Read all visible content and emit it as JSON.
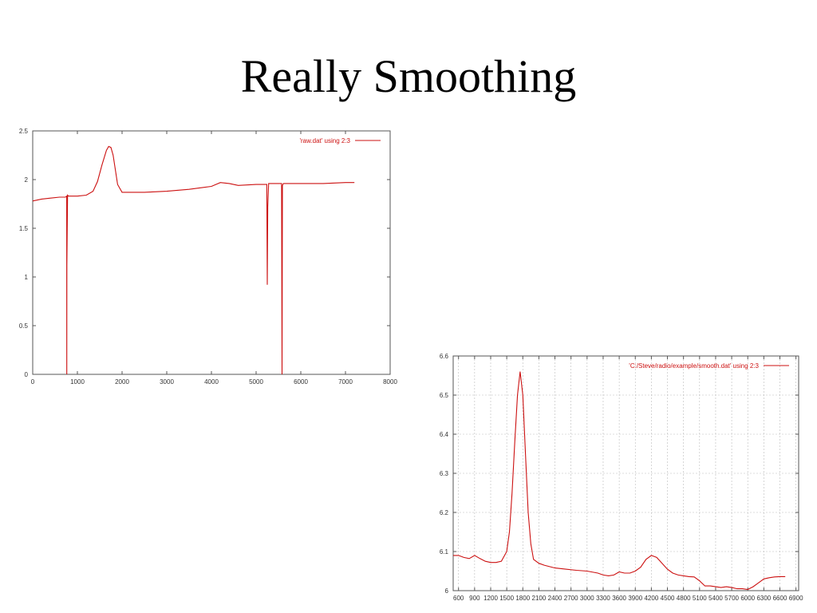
{
  "slide": {
    "title": "Really Smoothing"
  },
  "colors": {
    "line": "#cc1111",
    "axis": "#555555",
    "grid": "#bbbbbb"
  },
  "chart_data": [
    {
      "type": "line",
      "title": "",
      "xlabel": "",
      "ylabel": "",
      "xlim": [
        0,
        8000
      ],
      "ylim": [
        0,
        2.5
      ],
      "grid": false,
      "legend_position": "top-right",
      "x_ticks": [
        0,
        1000,
        2000,
        3000,
        4000,
        5000,
        6000,
        7000,
        8000
      ],
      "y_ticks": [
        0,
        0.5,
        1,
        1.5,
        2,
        2.5
      ],
      "series": [
        {
          "name": "'raw.dat' using 2:3",
          "x": [
            0,
            200,
            400,
            600,
            730,
            760,
            762,
            765,
            780,
            800,
            1000,
            1200,
            1350,
            1450,
            1550,
            1650,
            1700,
            1750,
            1800,
            1850,
            1900,
            2000,
            2100,
            2200,
            2500,
            3000,
            3500,
            4000,
            4200,
            4400,
            4600,
            5000,
            5240,
            5250,
            5260,
            5280,
            5400,
            5500,
            5570,
            5580,
            5590,
            5610,
            5700,
            6000,
            6500,
            7000,
            7200
          ],
          "y": [
            1.78,
            1.8,
            1.81,
            1.82,
            1.82,
            1.83,
            0,
            1.12,
            1.84,
            1.83,
            1.83,
            1.84,
            1.88,
            1.98,
            2.15,
            2.3,
            2.34,
            2.33,
            2.25,
            2.1,
            1.95,
            1.87,
            1.87,
            1.87,
            1.87,
            1.88,
            1.9,
            1.93,
            1.97,
            1.96,
            1.94,
            1.95,
            1.95,
            0.92,
            1.72,
            1.96,
            1.96,
            1.96,
            1.96,
            0,
            1.94,
            1.96,
            1.96,
            1.96,
            1.96,
            1.97,
            1.97
          ]
        }
      ]
    },
    {
      "type": "line",
      "title": "",
      "xlabel": "",
      "ylabel": "",
      "xlim": [
        500,
        6950
      ],
      "ylim": [
        6,
        6.6
      ],
      "grid": true,
      "legend_position": "top-right",
      "x_ticks": [
        600,
        900,
        1200,
        1500,
        1800,
        2100,
        2400,
        2700,
        3000,
        3300,
        3600,
        3900,
        4200,
        4500,
        4800,
        5100,
        5400,
        5700,
        6000,
        6300,
        6600,
        6900
      ],
      "y_ticks": [
        6,
        6.1,
        6.2,
        6.3,
        6.4,
        6.5,
        6.6
      ],
      "series": [
        {
          "name": "'C:/Steve/radio/example/smooth.dat' using 2:3",
          "x": [
            500,
            600,
            700,
            800,
            900,
            1000,
            1100,
            1200,
            1300,
            1400,
            1500,
            1550,
            1600,
            1650,
            1700,
            1750,
            1800,
            1850,
            1900,
            1950,
            2000,
            2100,
            2200,
            2400,
            2600,
            2800,
            3000,
            3200,
            3300,
            3400,
            3500,
            3600,
            3700,
            3800,
            3900,
            4000,
            4100,
            4200,
            4300,
            4400,
            4500,
            4600,
            4700,
            4800,
            4900,
            5000,
            5100,
            5200,
            5300,
            5400,
            5500,
            5600,
            5700,
            5800,
            5900,
            6000,
            6100,
            6200,
            6300,
            6400,
            6500,
            6600,
            6700
          ],
          "y": [
            6.09,
            6.09,
            6.085,
            6.082,
            6.09,
            6.082,
            6.075,
            6.072,
            6.072,
            6.075,
            6.1,
            6.15,
            6.25,
            6.38,
            6.5,
            6.56,
            6.5,
            6.35,
            6.2,
            6.12,
            6.08,
            6.07,
            6.065,
            6.058,
            6.055,
            6.052,
            6.05,
            6.045,
            6.04,
            6.038,
            6.04,
            6.048,
            6.045,
            6.045,
            6.05,
            6.06,
            6.08,
            6.09,
            6.085,
            6.07,
            6.055,
            6.045,
            6.04,
            6.038,
            6.036,
            6.035,
            6.025,
            6.012,
            6.012,
            6.01,
            6.008,
            6.01,
            6.008,
            6.005,
            6.005,
            6.003,
            6.01,
            6.02,
            6.03,
            6.033,
            6.035,
            6.036,
            6.036
          ]
        }
      ]
    }
  ]
}
